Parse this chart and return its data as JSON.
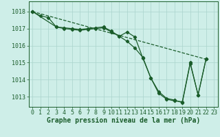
{
  "bg_color": "#ceeee8",
  "grid_color": "#aad4cc",
  "line_color": "#1a5c2a",
  "xlabel": "Graphe pression niveau de la mer (hPa)",
  "xlabel_fontsize": 7,
  "tick_fontsize": 6,
  "ylabel_ticks": [
    1013,
    1014,
    1015,
    1016,
    1017,
    1018
  ],
  "xlim": [
    -0.5,
    23.5
  ],
  "ylim": [
    1012.4,
    1018.6
  ],
  "series1": [
    [
      0,
      1018.0
    ],
    [
      1,
      1017.75
    ],
    [
      2,
      1017.65
    ],
    [
      3,
      1017.1
    ],
    [
      4,
      1017.05
    ],
    [
      5,
      1017.0
    ],
    [
      6,
      1016.95
    ],
    [
      7,
      1017.0
    ],
    [
      8,
      1017.05
    ],
    [
      9,
      1017.1
    ],
    [
      10,
      1016.85
    ],
    [
      11,
      1016.55
    ],
    [
      12,
      1016.25
    ],
    [
      13,
      1015.85
    ],
    [
      14,
      1015.3
    ],
    [
      15,
      1014.1
    ],
    [
      16,
      1013.2
    ],
    [
      17,
      1012.85
    ],
    [
      18,
      1012.75
    ],
    [
      19,
      1012.7
    ],
    [
      20,
      1015.0
    ],
    [
      21,
      1013.1
    ],
    [
      22,
      1015.2
    ]
  ],
  "series2": [
    [
      0,
      1018.0
    ],
    [
      3,
      1017.1
    ],
    [
      4,
      1017.0
    ],
    [
      5,
      1016.95
    ],
    [
      6,
      1016.9
    ],
    [
      7,
      1016.95
    ],
    [
      8,
      1017.0
    ],
    [
      9,
      1017.05
    ],
    [
      10,
      1016.8
    ],
    [
      11,
      1016.55
    ],
    [
      12,
      1016.8
    ],
    [
      13,
      1016.5
    ],
    [
      14,
      1015.25
    ],
    [
      15,
      1014.1
    ],
    [
      16,
      1013.3
    ],
    [
      17,
      1012.9
    ],
    [
      18,
      1012.8
    ],
    [
      19,
      1012.65
    ],
    [
      20,
      1014.95
    ],
    [
      21,
      1013.1
    ],
    [
      22,
      1015.2
    ]
  ],
  "series3_dashed": [
    [
      0,
      1018.0
    ],
    [
      22,
      1015.2
    ]
  ]
}
